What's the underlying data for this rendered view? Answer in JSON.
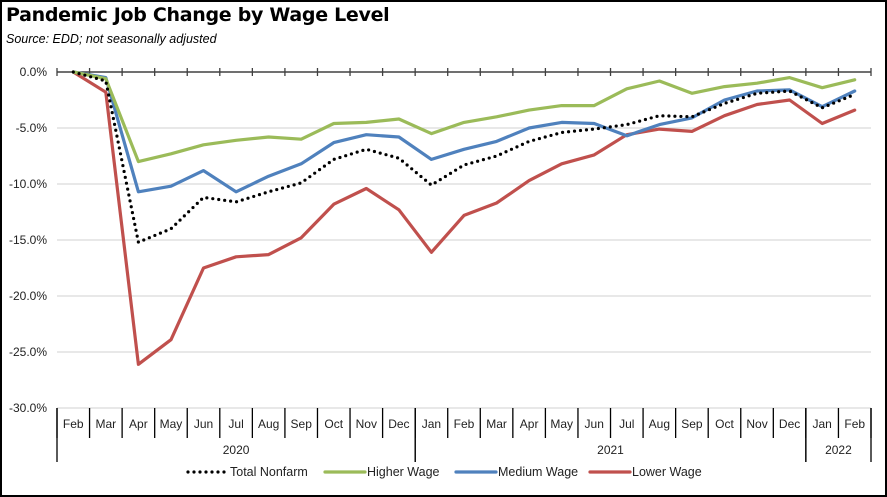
{
  "chart_data": {
    "type": "line",
    "title": "Pandemic Job Change by Wage Level",
    "subtitle": "Source:  EDD; not seasonally adjusted",
    "xlabel": "",
    "ylabel": "",
    "ylim": [
      -30,
      0
    ],
    "yticks": [
      0,
      -5,
      -10,
      -15,
      -20,
      -25,
      -30
    ],
    "ytick_labels": [
      "0.0%",
      "-5.0%",
      "-10.0%",
      "-15.0%",
      "-20.0%",
      "-25.0%",
      "-30.0%"
    ],
    "grid": true,
    "legend_position": "bottom",
    "categories": [
      "Feb",
      "Mar",
      "Apr",
      "May",
      "Jun",
      "Jul",
      "Aug",
      "Sep",
      "Oct",
      "Nov",
      "Dec",
      "Jan",
      "Feb",
      "Mar",
      "Apr",
      "May",
      "Jun",
      "Jul",
      "Aug",
      "Sep",
      "Oct",
      "Nov",
      "Dec",
      "Jan",
      "Feb"
    ],
    "year_groups": [
      {
        "label": "2020",
        "start": 0,
        "count": 11
      },
      {
        "label": "2021",
        "start": 11,
        "count": 12
      },
      {
        "label": "2022",
        "start": 23,
        "count": 2
      }
    ],
    "series": [
      {
        "name": "Total Nonfarm",
        "color": "#000000",
        "style": "dotted",
        "values": [
          0,
          -0.8,
          -15.2,
          -14.0,
          -11.2,
          -11.6,
          -10.7,
          -9.9,
          -7.8,
          -6.9,
          -7.7,
          -10.1,
          -8.3,
          -7.5,
          -6.2,
          -5.4,
          -5.1,
          -4.7,
          -3.9,
          -4.0,
          -2.8,
          -1.9,
          -1.7,
          -3.2,
          -2.0
        ]
      },
      {
        "name": "Higher Wage",
        "color": "#9BBB59",
        "style": "solid",
        "values": [
          0,
          -0.6,
          -8.0,
          -7.3,
          -6.5,
          -6.1,
          -5.8,
          -6.0,
          -4.6,
          -4.5,
          -4.2,
          -5.5,
          -4.5,
          -4.0,
          -3.4,
          -3.0,
          -3.0,
          -1.5,
          -0.8,
          -1.9,
          -1.3,
          -1.0,
          -0.5,
          -1.4,
          -0.7
        ]
      },
      {
        "name": "Medium Wage",
        "color": "#4F81BD",
        "style": "solid",
        "values": [
          0,
          -0.5,
          -10.7,
          -10.2,
          -8.8,
          -10.7,
          -9.3,
          -8.2,
          -6.3,
          -5.6,
          -5.8,
          -7.8,
          -6.9,
          -6.2,
          -5.0,
          -4.5,
          -4.6,
          -5.7,
          -4.7,
          -4.1,
          -2.5,
          -1.7,
          -1.6,
          -3.1,
          -1.7
        ]
      },
      {
        "name": "Lower Wage",
        "color": "#C0504D",
        "style": "solid",
        "values": [
          0,
          -1.8,
          -26.1,
          -23.9,
          -17.5,
          -16.5,
          -16.3,
          -14.8,
          -11.8,
          -10.4,
          -12.3,
          -16.1,
          -12.8,
          -11.7,
          -9.7,
          -8.2,
          -7.4,
          -5.6,
          -5.1,
          -5.3,
          -3.9,
          -2.9,
          -2.5,
          -4.6,
          -3.4
        ]
      }
    ]
  }
}
